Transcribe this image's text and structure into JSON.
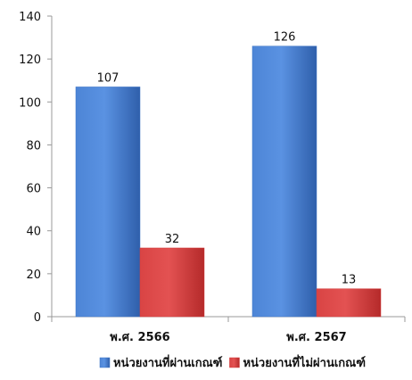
{
  "chart_data": {
    "type": "bar",
    "title": "",
    "xlabel": "",
    "ylabel": "",
    "categories": [
      "พ.ศ. 2566",
      "พ.ศ. 2567"
    ],
    "series": [
      {
        "name": "หน่วยงานที่ผ่านเกณฑ์",
        "values": [
          107,
          126
        ],
        "color": "#3f74c4"
      },
      {
        "name": "หน่วยงานที่ไม่ผ่านเกณฑ์",
        "values": [
          32,
          13
        ],
        "color": "#d23a3a"
      }
    ],
    "ylim": [
      0,
      140
    ],
    "yticks": [
      0,
      20,
      40,
      60,
      80,
      100,
      120,
      140
    ],
    "grid": false,
    "data_labels": true,
    "legend_position": "bottom"
  }
}
